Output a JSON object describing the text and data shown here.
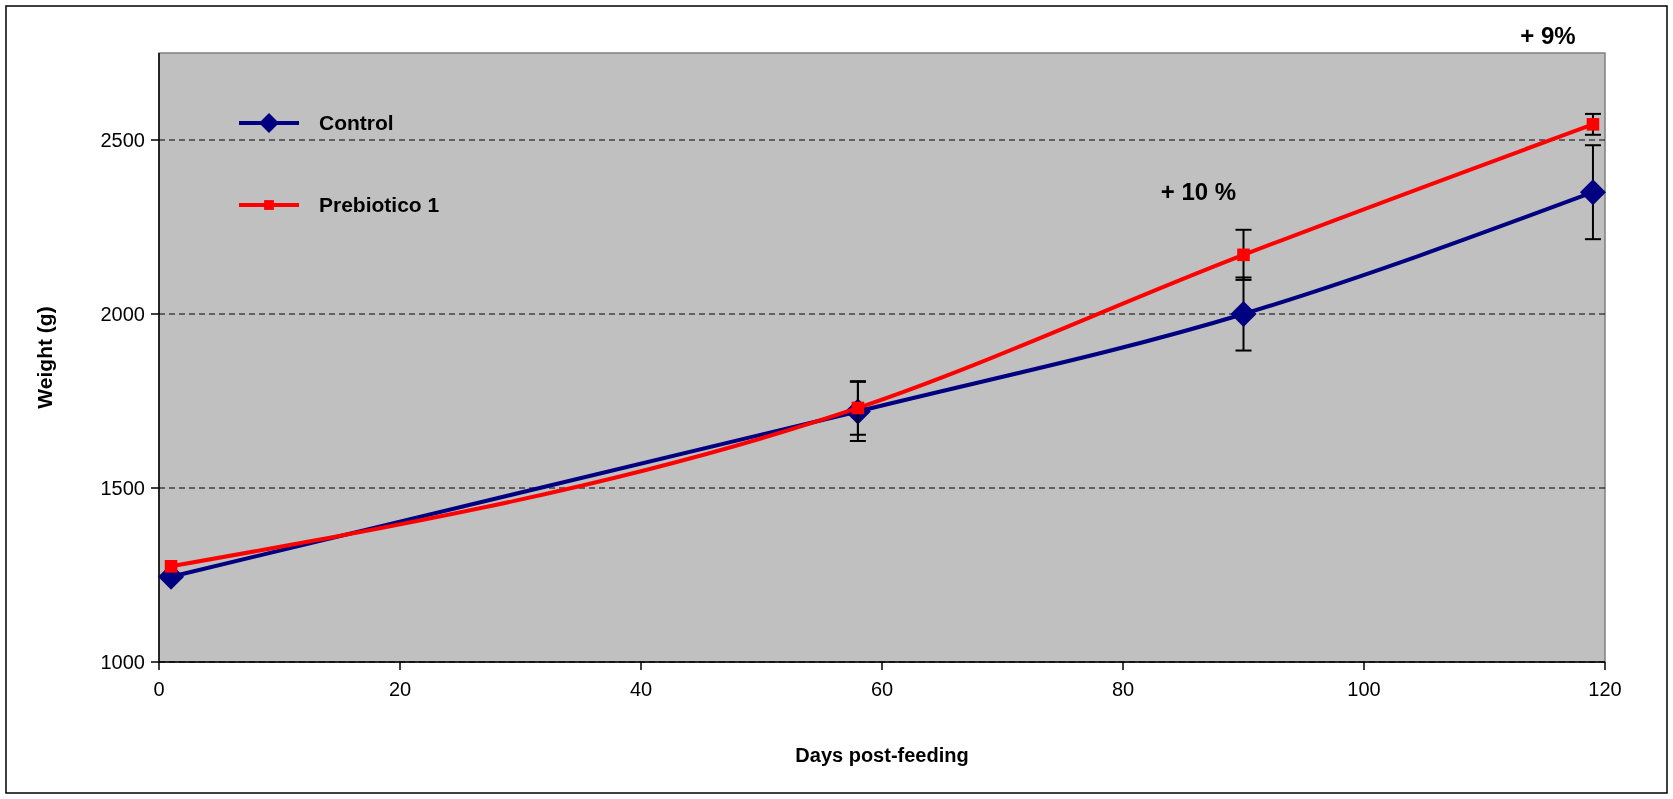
{
  "chart_data": {
    "type": "line",
    "xlabel": "Days post-feeding",
    "ylabel": "Weight (g)",
    "x": [
      1,
      58,
      90,
      119
    ],
    "series": [
      {
        "name": "Control",
        "color": "#000080",
        "marker": "diamond",
        "values": [
          1245,
          1720,
          2000,
          2350
        ],
        "errors": [
          null,
          85,
          105,
          135
        ]
      },
      {
        "name": "Prebiotico 1",
        "color": "#ff0000",
        "marker": "square",
        "values": [
          1275,
          1730,
          2170,
          2545
        ],
        "errors": [
          null,
          77,
          72,
          30
        ]
      }
    ],
    "xlim": [
      0,
      120
    ],
    "xticks": [
      0,
      20,
      40,
      60,
      80,
      100,
      120
    ],
    "ylim": [
      1000,
      2750
    ],
    "yticks": [
      1000,
      1500,
      2000,
      2500
    ],
    "grid": "y",
    "legend": "top left",
    "annotations": [
      "+ 10 %",
      "+ 9%"
    ]
  }
}
